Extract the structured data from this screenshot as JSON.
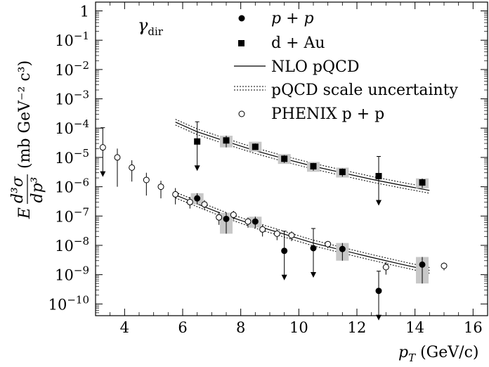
{
  "chart_data": {
    "type": "scatter",
    "log_y": true,
    "xlim": [
      3.0,
      16.5
    ],
    "ylim_exp": [
      -10.4,
      0.3
    ],
    "x_ticks": [
      "4",
      "6",
      "8",
      "10",
      "12",
      "14",
      "16"
    ],
    "x_tick_values": [
      4,
      6,
      8,
      10,
      12,
      14,
      16
    ],
    "y_ticks": [
      "1",
      "10",
      "10",
      "10",
      "10",
      "10",
      "10",
      "10",
      "10",
      "10",
      "10"
    ],
    "y_tick_exponents": [
      "",
      "−1",
      "−2",
      "−3",
      "−4",
      "−5",
      "−6",
      "−7",
      "−8",
      "−9",
      "−10"
    ],
    "y_tick_values": [
      0,
      -1,
      -2,
      -3,
      -4,
      -5,
      -6,
      -7,
      -8,
      -9,
      -10
    ],
    "xlabel": "p_T (GeV/c)",
    "xlabel_parts": {
      "var": "p",
      "sub": "T",
      "unit": " (GeV/c)"
    },
    "ylabel_parts": {
      "E": "E",
      "num": "d³σ",
      "den": "dp³",
      "unit": "(mb GeV⁻² c³)"
    },
    "annotation": {
      "main": "γ",
      "sub": "dir"
    },
    "legend": [
      {
        "marker": "filled-circle",
        "label": "p + p"
      },
      {
        "marker": "filled-square",
        "label": "d + Au"
      },
      {
        "marker": "solid-line",
        "label": "NLO pQCD"
      },
      {
        "marker": "dashed-lines",
        "label": "pQCD scale uncertainty"
      },
      {
        "marker": "open-circle",
        "label": "PHENIX p + p"
      }
    ],
    "series": [
      {
        "name": "p + p",
        "points": [
          {
            "x": 6.5,
            "y": 4e-07,
            "err_lo": 2.5e-07,
            "err_hi": 6e-07,
            "box": true
          },
          {
            "x": 7.5,
            "y": 8e-08,
            "err_lo": 2.5e-08,
            "err_hi": 1.3e-07,
            "box": true
          },
          {
            "x": 8.5,
            "y": 6.5e-08,
            "err_lo": 4e-08,
            "err_hi": 9.5e-08,
            "box": true
          },
          {
            "x": 9.5,
            "y": 6.5e-09,
            "upper_limit": true
          },
          {
            "x": 10.5,
            "y": 8e-09,
            "upper_limit": true
          },
          {
            "x": 11.5,
            "y": 7.5e-09,
            "err_lo": 3e-09,
            "err_hi": 1.2e-08,
            "box": true
          },
          {
            "x": 12.75,
            "y": 2.8e-10,
            "upper_limit": true
          },
          {
            "x": 14.25,
            "y": 2.2e-09,
            "err_lo": 5e-10,
            "err_hi": 4e-09,
            "box": true
          }
        ]
      },
      {
        "name": "d + Au",
        "points": [
          {
            "x": 6.5,
            "y": 3.5e-05,
            "upper_limit": true
          },
          {
            "x": 7.5,
            "y": 3.8e-05,
            "err_lo": 2.2e-05,
            "err_hi": 5.5e-05,
            "box": true
          },
          {
            "x": 8.5,
            "y": 2.3e-05,
            "err_lo": 1.8e-05,
            "err_hi": 3e-05,
            "box": true
          },
          {
            "x": 9.5,
            "y": 9e-06,
            "err_lo": 6.5e-06,
            "err_hi": 1.2e-05,
            "box": true
          },
          {
            "x": 10.5,
            "y": 5e-06,
            "err_lo": 3.5e-06,
            "err_hi": 6.5e-06,
            "box": true
          },
          {
            "x": 11.5,
            "y": 3.2e-06,
            "err_lo": 2.2e-06,
            "err_hi": 4.2e-06,
            "box": true
          },
          {
            "x": 12.75,
            "y": 2.3e-06,
            "upper_limit": true
          },
          {
            "x": 14.25,
            "y": 1.4e-06,
            "err_lo": 9e-07,
            "err_hi": 1.9e-06,
            "box": true
          }
        ]
      },
      {
        "name": "PHENIX p + p",
        "points": [
          {
            "x": 3.25,
            "y": 2.2e-05,
            "upper_limit": true
          },
          {
            "x": 3.75,
            "y": 1e-05,
            "err_lo": 1e-06,
            "err_hi": 2e-05
          },
          {
            "x": 4.25,
            "y": 4.5e-06,
            "err_lo": 1.5e-06,
            "err_hi": 8e-06
          },
          {
            "x": 4.75,
            "y": 1.7e-06,
            "err_lo": 5e-07,
            "err_hi": 3e-06
          },
          {
            "x": 5.25,
            "y": 1e-06,
            "err_lo": 4e-07,
            "err_hi": 1.6e-06
          },
          {
            "x": 5.75,
            "y": 5.5e-07,
            "err_lo": 2.5e-07,
            "err_hi": 9e-07
          },
          {
            "x": 6.25,
            "y": 3e-07,
            "err_lo": 1.8e-07,
            "err_hi": 4.5e-07
          },
          {
            "x": 6.75,
            "y": 2.5e-07,
            "err_lo": 1.6e-07,
            "err_hi": 3.5e-07
          },
          {
            "x": 7.25,
            "y": 9e-08,
            "err_lo": 5e-08,
            "err_hi": 1.4e-07
          },
          {
            "x": 7.75,
            "y": 1.1e-07,
            "err_lo": 7.5e-08,
            "err_hi": 1.5e-07
          },
          {
            "x": 8.25,
            "y": 6.5e-08,
            "err_lo": 4e-08,
            "err_hi": 9e-08
          },
          {
            "x": 8.75,
            "y": 3.5e-08,
            "err_lo": 2e-08,
            "err_hi": 5e-08
          },
          {
            "x": 9.25,
            "y": 2.5e-08,
            "err_lo": 1.5e-08,
            "err_hi": 3.5e-08
          },
          {
            "x": 9.75,
            "y": 2.2e-08,
            "err_lo": 1.4e-08,
            "err_hi": 3e-08
          },
          {
            "x": 11.0,
            "y": 1.1e-08,
            "err_lo": 8e-09,
            "err_hi": 1.4e-08
          },
          {
            "x": 13.0,
            "y": 1.8e-09,
            "err_lo": 1e-09,
            "err_hi": 2.7e-09
          },
          {
            "x": 15.0,
            "y": 2e-09,
            "err_lo": 1.4e-09,
            "err_hi": 2.6e-09
          }
        ]
      }
    ],
    "theory_curves": [
      {
        "name": "NLO pQCD (d+Au)",
        "x": [
          5.75,
          6.5,
          7.5,
          8.5,
          9.5,
          10.5,
          11.5,
          12.5,
          13.5,
          14.5
        ],
        "y": [
          0.00016,
          7.5e-05,
          3.5e-05,
          1.7e-05,
          9e-06,
          5e-06,
          3e-06,
          1.8e-06,
          1.15e-06,
          7.5e-07
        ],
        "band_factor": 1.25
      },
      {
        "name": "NLO pQCD (p+p)",
        "x": [
          5.75,
          6.5,
          7.5,
          8.5,
          9.5,
          10.5,
          11.5,
          12.5,
          13.5,
          14.5
        ],
        "y": [
          5.2e-07,
          2.6e-07,
          1.05e-07,
          4.8e-08,
          2.4e-08,
          1.2e-08,
          6.8e-09,
          3.9e-09,
          2.3e-09,
          1.4e-09
        ],
        "band_factor": 1.25
      }
    ]
  }
}
